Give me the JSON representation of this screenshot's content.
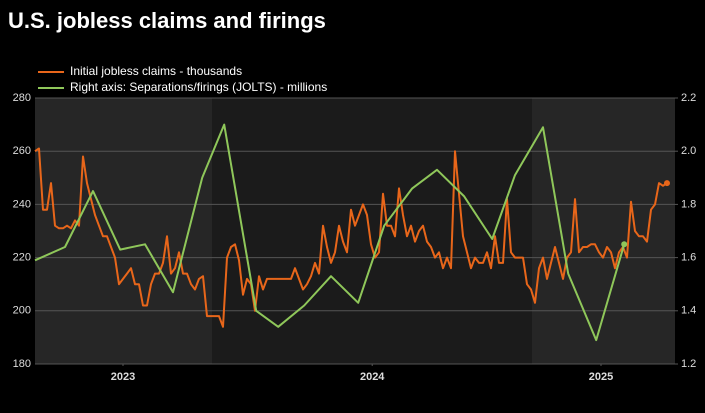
{
  "chart_data": {
    "type": "line",
    "title": "U.S. jobless claims and firings",
    "series": [
      {
        "name": "Initial jobless claims - thousands",
        "color": "#e8661a",
        "axis": "y",
        "x": [
          0,
          1,
          2,
          3,
          4,
          5,
          6,
          7,
          8,
          9,
          10,
          11,
          12,
          13,
          14,
          15,
          16,
          17,
          18,
          19,
          20,
          21,
          22,
          23,
          24,
          25,
          26,
          27,
          28,
          29,
          30,
          31,
          32,
          33,
          34,
          35,
          36,
          37,
          38,
          39,
          40,
          41,
          42,
          43,
          44,
          45,
          46,
          47,
          48,
          49,
          50,
          51,
          52,
          53,
          54,
          55,
          56,
          57,
          58,
          59,
          60,
          61,
          62,
          63,
          64,
          65,
          66,
          67,
          68,
          69,
          70,
          71,
          72,
          73,
          74,
          75,
          76,
          77,
          78,
          79,
          80,
          81,
          82,
          83,
          84,
          85,
          86,
          87,
          88,
          89,
          90,
          91,
          92,
          93,
          94,
          95,
          96,
          97,
          98,
          99,
          100,
          101,
          102,
          103,
          104,
          105,
          106,
          107,
          108,
          109,
          110,
          111,
          112,
          113,
          114,
          115,
          116,
          117,
          118,
          119,
          120,
          121,
          122,
          123,
          124,
          125,
          126,
          127,
          128,
          129,
          130,
          131,
          132,
          133,
          134,
          135,
          136,
          137,
          138,
          139,
          140,
          141,
          142,
          143,
          144,
          145,
          146,
          147,
          148,
          149,
          150,
          151,
          152,
          153,
          154,
          155,
          156,
          157,
          158
        ],
        "values": [
          260,
          261,
          238,
          238,
          248,
          232,
          231,
          231,
          232,
          231,
          234,
          232,
          258,
          248,
          242,
          236,
          232,
          228,
          228,
          224,
          220,
          210,
          212,
          214,
          216,
          210,
          210,
          202,
          202,
          210,
          214,
          214,
          218,
          228,
          214,
          216,
          222,
          214,
          214,
          210,
          208,
          212,
          213,
          198,
          198,
          198,
          198,
          194,
          220,
          224,
          225,
          219,
          206,
          212,
          210,
          200,
          213,
          208,
          212,
          212,
          212,
          212,
          212,
          212,
          212,
          216,
          212,
          208,
          210,
          213,
          218,
          214,
          232,
          224,
          218,
          222,
          232,
          226,
          222,
          238,
          232,
          236,
          240,
          236,
          225,
          220,
          222,
          244,
          232,
          232,
          228,
          246,
          236,
          228,
          232,
          226,
          230,
          232,
          226,
          224,
          220,
          222,
          216,
          220,
          216,
          260,
          244,
          228,
          222,
          216,
          220,
          218,
          218,
          222,
          216,
          228,
          218,
          218,
          242,
          222,
          220,
          220,
          220,
          210,
          208,
          203,
          216,
          220,
          212,
          218,
          224,
          218,
          212,
          220,
          222,
          242,
          222,
          224,
          224,
          225,
          225,
          222,
          220,
          224,
          222,
          216,
          222,
          224,
          220,
          241,
          230,
          228,
          228,
          226,
          238,
          240,
          248,
          247,
          248
        ]
      },
      {
        "name": "Right axis: Separations/firings (JOLTS) - millions",
        "color": "#8fc75a",
        "axis": "y2",
        "x": [
          0,
          7.5,
          14.5,
          21.3,
          27.5,
          34.5,
          41.8,
          47.3,
          55.3,
          60.8,
          67.3,
          74,
          80.8,
          87.3,
          94.3,
          100.5,
          107.3,
          114.3,
          120,
          127,
          133.3,
          140.3,
          147.3
        ],
        "values": [
          1.59,
          1.64,
          1.85,
          1.63,
          1.65,
          1.47,
          1.9,
          2.1,
          1.4,
          1.34,
          1.42,
          1.53,
          1.43,
          1.72,
          1.86,
          1.93,
          1.83,
          1.67,
          1.91,
          2.09,
          1.54,
          1.29,
          1.65
        ]
      }
    ],
    "xlim": [
      0,
      160
    ],
    "xticks": [
      {
        "value": 22,
        "label": "2023"
      },
      {
        "value": 84.3,
        "label": "2024"
      },
      {
        "value": 141.5,
        "label": "2025"
      }
    ],
    "ylim": [
      180,
      280
    ],
    "yticks": [
      180,
      200,
      220,
      240,
      260,
      280
    ],
    "y2lim": [
      1.2,
      2.2
    ],
    "y2ticks": [
      1.2,
      1.4,
      1.6,
      1.8,
      {
        "value": 2,
        "label": "2.0"
      },
      2.2
    ],
    "grid": true
  }
}
